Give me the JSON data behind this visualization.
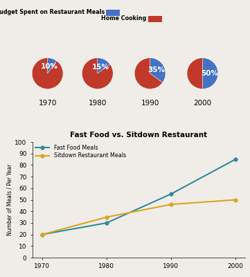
{
  "pie_years": [
    "1970",
    "1980",
    "1990",
    "2000"
  ],
  "pie_restaurant_pct": [
    10,
    15,
    35,
    50
  ],
  "pie_color_restaurant": "#4472C4",
  "pie_color_home": "#C0392B",
  "legend_restaurant_label": "Percentage of Food Budget Spent on Restaurant Meals",
  "legend_home_label": "Home Cooking",
  "line_years": [
    1970,
    1980,
    1990,
    2000
  ],
  "fast_food": [
    20,
    30,
    55,
    85
  ],
  "sitdown": [
    20,
    35,
    46,
    50
  ],
  "line_title": "Fast Food vs. Sitdown Restaurant",
  "line_label_fast": "Fast Food Meals",
  "line_label_sitdown": "Sitdown Restaurant Meals",
  "line_color_fast": "#2E8B9A",
  "line_color_sitdown": "#DAA520",
  "ylabel_line": "Number of Meals / Per Year",
  "ylim_line": [
    0,
    100
  ],
  "yticks_line": [
    0,
    10,
    20,
    30,
    40,
    50,
    60,
    70,
    80,
    90,
    100
  ],
  "background_color": "#F0EDE8",
  "pie_label_color": "white",
  "pie_label_fontsize": 7.5
}
